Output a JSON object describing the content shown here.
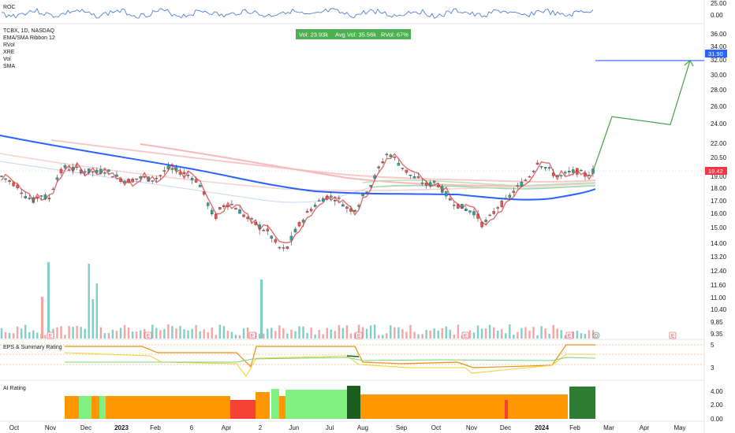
{
  "chart_data": {
    "type": "candlestick",
    "symbol_line": "TCBX, 1D, NASDAQ",
    "indicators": [
      "EMA/SMA Ribbon 12",
      "RVol",
      "XRE",
      "Vol",
      "SMA"
    ],
    "roc_panel": {
      "label": "ROC",
      "ticks": [
        "25.00",
        "0.00"
      ]
    },
    "eps_panel": {
      "label": "EPS & Summary Rating",
      "ticks": [
        "5",
        "3"
      ]
    },
    "ai_panel": {
      "label": "AI Rating",
      "ticks": [
        "4.00",
        "2.00",
        "0.00"
      ]
    },
    "volume_badge": {
      "vol": "Vol: 23.93k",
      "avg": "Avg Vol: 35.56k",
      "rvol": "RVol: 67%"
    },
    "price_axis": [
      "36.00",
      "34.00",
      "32.00",
      "30.00",
      "28.00",
      "26.00",
      "24.00",
      "22.00",
      "20.50",
      "19.00",
      "18.00",
      "17.00",
      "16.00",
      "15.00",
      "14.00",
      "13.20",
      "12.40",
      "11.60",
      "11.00",
      "10.40",
      "9.85",
      "9.35"
    ],
    "ylim": [
      9.0,
      37.0
    ],
    "last_price": {
      "label": "19.42",
      "value": 19.42,
      "color": "#f23645"
    },
    "target_price": {
      "label": "31.90",
      "value": 31.9,
      "color": "#2962ff"
    },
    "x_ticks": [
      {
        "label": "Oct",
        "bold": false
      },
      {
        "label": "Nov",
        "bold": false
      },
      {
        "label": "Dec",
        "bold": false
      },
      {
        "label": "2023",
        "bold": true
      },
      {
        "label": "Feb",
        "bold": false
      },
      {
        "label": "6",
        "bold": false
      },
      {
        "label": "Apr",
        "bold": false
      },
      {
        "label": "2",
        "bold": false
      },
      {
        "label": "Jun",
        "bold": false
      },
      {
        "label": "Jul",
        "bold": false
      },
      {
        "label": "Aug",
        "bold": false
      },
      {
        "label": "Sep",
        "bold": false
      },
      {
        "label": "Oct",
        "bold": false
      },
      {
        "label": "Nov",
        "bold": false
      },
      {
        "label": "Dec",
        "bold": false
      },
      {
        "label": "2024",
        "bold": true
      },
      {
        "label": "Feb",
        "bold": false
      },
      {
        "label": "Mar",
        "bold": false
      },
      {
        "label": "Apr",
        "bold": false
      },
      {
        "label": "May",
        "bold": false
      }
    ],
    "projection": [
      [
        19.42,
        0
      ],
      [
        24.8,
        0.0
      ],
      [
        23.9,
        0.0
      ],
      [
        31.9,
        0.0
      ]
    ],
    "price_series": [
      19.0,
      18.6,
      18.2,
      17.4,
      17.0,
      17.5,
      17.1,
      18.9,
      19.7,
      19.6,
      19.5,
      19.4,
      19.3,
      19.5,
      19.2,
      18.8,
      18.6,
      18.8,
      18.9,
      18.7,
      19.0,
      19.6,
      19.5,
      19.3,
      19.0,
      18.5,
      17.0,
      15.6,
      16.6,
      16.8,
      16.3,
      15.7,
      15.3,
      15.0,
      14.6,
      13.8,
      13.5,
      14.5,
      15.4,
      16.2,
      16.8,
      17.3,
      17.3,
      17.0,
      16.3,
      16.4,
      17.6,
      18.5,
      19.8,
      21.0,
      20.3,
      19.6,
      19.0,
      18.7,
      18.2,
      18.6,
      17.8,
      17.0,
      16.6,
      16.3,
      16.1,
      15.2,
      15.7,
      16.6,
      17.0,
      17.8,
      18.4,
      19.1,
      20.2,
      19.7,
      19.2,
      19.0,
      19.3,
      19.4,
      19.1,
      19.42
    ],
    "colors": {
      "up": "#26a69a",
      "down": "#ef5350",
      "sma": "#2962ff",
      "proj": "#43a047"
    },
    "badges": {
      "earnings": "E",
      "dividend": "D"
    }
  }
}
